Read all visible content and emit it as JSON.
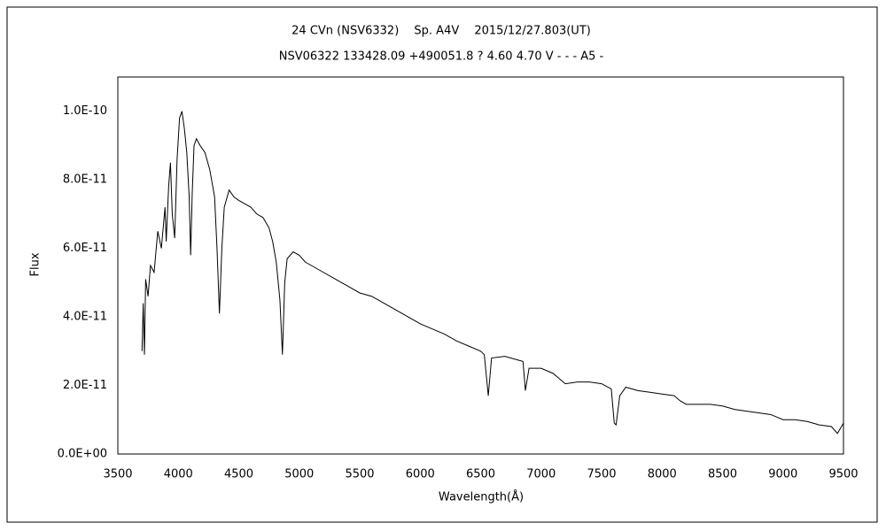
{
  "chart_data": {
    "type": "line",
    "title": "24 CVn (NSV6332)　 Sp. A4V　 2015/12/27.803(UT)",
    "subtitle": "NSV06322 133428.09 +490051.8 ? 4.60 4.70 V - - - A5 -",
    "x_label": "Wavelength(Å)",
    "y_label": "Flux",
    "color": "#000000",
    "grid": false,
    "xlim": [
      3500,
      9500
    ],
    "xticks": [
      3500,
      4000,
      4500,
      5000,
      5500,
      6000,
      6500,
      7000,
      7500,
      8000,
      8500,
      9000,
      9500
    ],
    "ylim": [
      0,
      1.1e-10
    ],
    "yticks": [
      {
        "value": 0,
        "label": "0.0E+00"
      },
      {
        "value": 2e-11,
        "label": "2.0E-11"
      },
      {
        "value": 4e-11,
        "label": "4.0E-11"
      },
      {
        "value": 6e-11,
        "label": "6.0E-11"
      },
      {
        "value": 8e-11,
        "label": "8.0E-11"
      },
      {
        "value": 1e-10,
        "label": "1.0E-10"
      }
    ],
    "x": [
      3700,
      3710,
      3720,
      3730,
      3750,
      3770,
      3800,
      3830,
      3860,
      3890,
      3900,
      3920,
      3935,
      3950,
      3970,
      3990,
      4010,
      4030,
      4050,
      4070,
      4090,
      4102,
      4115,
      4130,
      4150,
      4180,
      4220,
      4260,
      4300,
      4320,
      4340,
      4360,
      4380,
      4420,
      4460,
      4500,
      4550,
      4600,
      4650,
      4700,
      4750,
      4780,
      4810,
      4840,
      4861,
      4880,
      4900,
      4950,
      5000,
      5050,
      5100,
      5200,
      5300,
      5400,
      5500,
      5600,
      5700,
      5800,
      5900,
      6000,
      6100,
      6200,
      6300,
      6400,
      6500,
      6530,
      6563,
      6590,
      6700,
      6800,
      6850,
      6870,
      6900,
      7000,
      7100,
      7200,
      7300,
      7400,
      7500,
      7580,
      7605,
      7620,
      7650,
      7700,
      7800,
      7900,
      8000,
      8100,
      8150,
      8200,
      8300,
      8400,
      8500,
      8600,
      8700,
      8800,
      8900,
      9000,
      9100,
      9200,
      9300,
      9400,
      9450,
      9500
    ],
    "values": [
      3e-11,
      4.4e-11,
      2.9e-11,
      5.1e-11,
      4.6e-11,
      5.5e-11,
      5.3e-11,
      6.5e-11,
      6e-11,
      7.2e-11,
      6.2e-11,
      7.8e-11,
      8.5e-11,
      7e-11,
      6.3e-11,
      8.6e-11,
      9.8e-11,
      1e-10,
      9.5e-11,
      8.8e-11,
      7.5e-11,
      5.8e-11,
      7.6e-11,
      9e-11,
      9.2e-11,
      9e-11,
      8.8e-11,
      8.3e-11,
      7.5e-11,
      6e-11,
      4.1e-11,
      6e-11,
      7.2e-11,
      7.7e-11,
      7.5e-11,
      7.4e-11,
      7.3e-11,
      7.2e-11,
      7e-11,
      6.9e-11,
      6.6e-11,
      6.2e-11,
      5.6e-11,
      4.5e-11,
      2.9e-11,
      5e-11,
      5.7e-11,
      5.9e-11,
      5.8e-11,
      5.6e-11,
      5.5e-11,
      5.3e-11,
      5.1e-11,
      4.9e-11,
      4.7e-11,
      4.6e-11,
      4.4e-11,
      4.2e-11,
      4e-11,
      3.8e-11,
      3.65e-11,
      3.5e-11,
      3.3e-11,
      3.15e-11,
      3e-11,
      2.9e-11,
      1.7e-11,
      2.8e-11,
      2.85e-11,
      2.75e-11,
      2.7e-11,
      1.85e-11,
      2.5e-11,
      2.5e-11,
      2.35e-11,
      2.05e-11,
      2.1e-11,
      2.1e-11,
      2.05e-11,
      1.9e-11,
      9e-12,
      8.5e-12,
      1.7e-11,
      1.95e-11,
      1.85e-11,
      1.8e-11,
      1.75e-11,
      1.7e-11,
      1.55e-11,
      1.45e-11,
      1.45e-11,
      1.45e-11,
      1.4e-11,
      1.3e-11,
      1.25e-11,
      1.2e-11,
      1.15e-11,
      1e-11,
      1e-11,
      9.5e-12,
      8.5e-12,
      8e-12,
      6e-12,
      9e-12
    ]
  }
}
